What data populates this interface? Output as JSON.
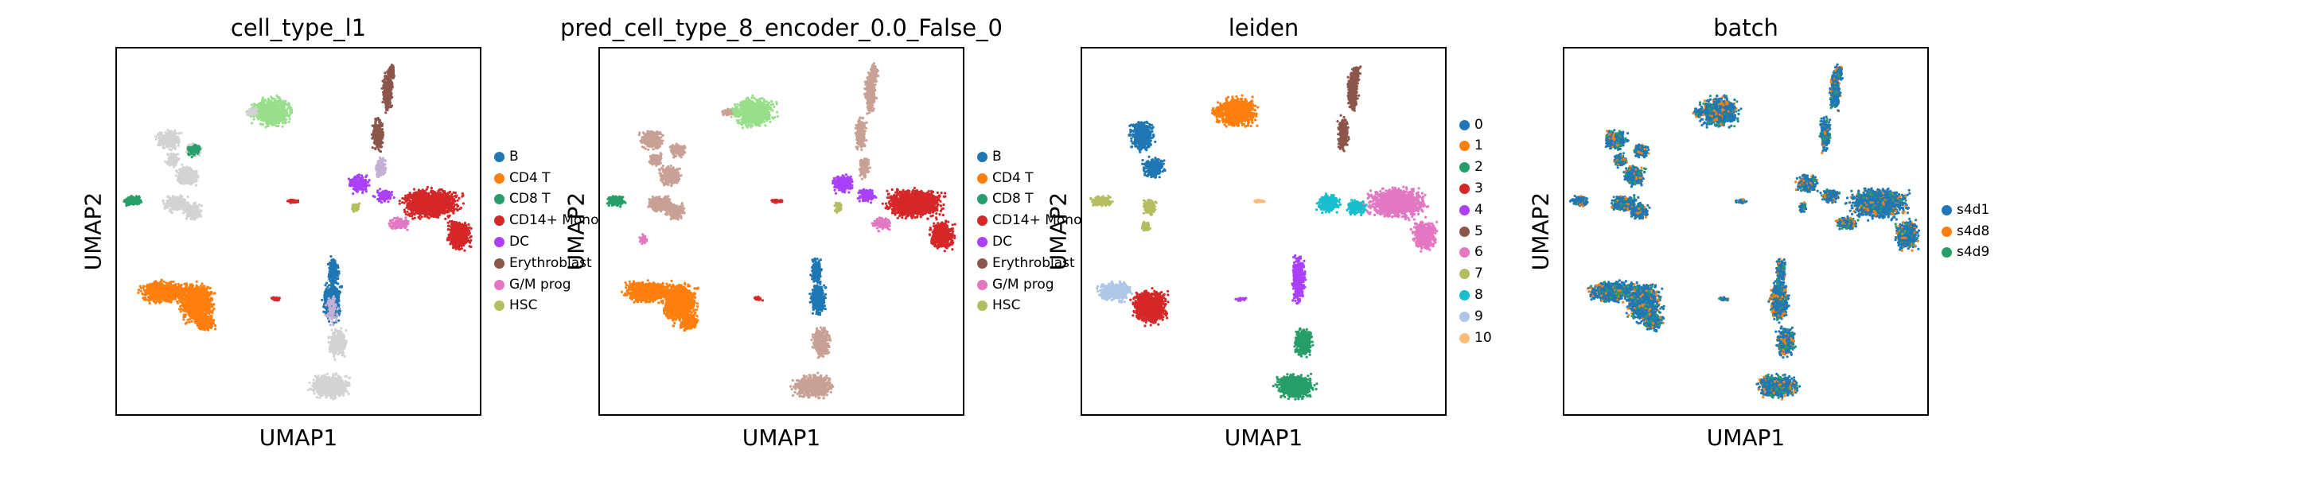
{
  "chart_data": [
    {
      "type": "scatter",
      "title": "cell_type_l1",
      "xlabel": "UMAP1",
      "ylabel": "UMAP2",
      "legend_position": "right",
      "legend": [
        {
          "name": "B",
          "color": "#1f77b4"
        },
        {
          "name": "CD4 T",
          "color": "#ff7f0e"
        },
        {
          "name": "CD8 T",
          "color": "#279e68"
        },
        {
          "name": "CD14+ Mono",
          "color": "#d62728"
        },
        {
          "name": "DC",
          "color": "#aa40fc"
        },
        {
          "name": "Erythroblast",
          "color": "#8c564b"
        },
        {
          "name": "G/M prog",
          "color": "#e377c2"
        },
        {
          "name": "HSC",
          "color": "#b5bd61"
        }
      ]
    },
    {
      "type": "scatter",
      "title": "pred_cell_type_8_encoder_0.0_False_0",
      "xlabel": "UMAP1",
      "ylabel": "UMAP2",
      "legend_position": "right",
      "legend": [
        {
          "name": "B",
          "color": "#1f77b4"
        },
        {
          "name": "CD4 T",
          "color": "#ff7f0e"
        },
        {
          "name": "CD8 T",
          "color": "#279e68"
        },
        {
          "name": "CD14+ Mono",
          "color": "#d62728"
        },
        {
          "name": "DC",
          "color": "#aa40fc"
        },
        {
          "name": "Erythroblast",
          "color": "#8c564b"
        },
        {
          "name": "G/M prog",
          "color": "#e377c2"
        },
        {
          "name": "HSC",
          "color": "#b5bd61"
        }
      ]
    },
    {
      "type": "scatter",
      "title": "leiden",
      "xlabel": "UMAP1",
      "ylabel": "UMAP2",
      "legend_position": "right",
      "legend": [
        {
          "name": "0",
          "color": "#1f77b4"
        },
        {
          "name": "1",
          "color": "#ff7f0e"
        },
        {
          "name": "2",
          "color": "#279e68"
        },
        {
          "name": "3",
          "color": "#d62728"
        },
        {
          "name": "4",
          "color": "#aa40fc"
        },
        {
          "name": "5",
          "color": "#8c564b"
        },
        {
          "name": "6",
          "color": "#e377c2"
        },
        {
          "name": "7",
          "color": "#b5bd61"
        },
        {
          "name": "8",
          "color": "#17becf"
        },
        {
          "name": "9",
          "color": "#aec7e8"
        },
        {
          "name": "10",
          "color": "#ffbb78"
        }
      ]
    },
    {
      "type": "scatter",
      "title": "batch",
      "xlabel": "UMAP1",
      "ylabel": "UMAP2",
      "legend_position": "right",
      "legend": [
        {
          "name": "s4d1",
          "color": "#1f77b4"
        },
        {
          "name": "s4d8",
          "color": "#ff7f0e"
        },
        {
          "name": "s4d9",
          "color": "#279e68"
        }
      ]
    }
  ]
}
